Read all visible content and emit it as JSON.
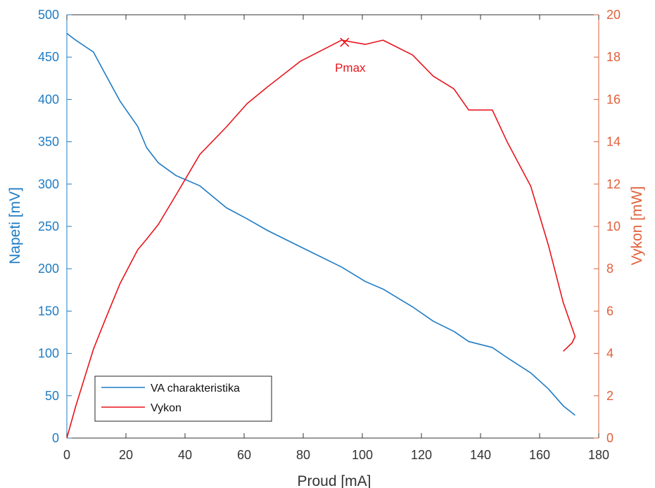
{
  "chart_data": {
    "type": "line",
    "title": "",
    "xlabel": "Proud [mA]",
    "ylabel_left": "Napeti [mV]",
    "ylabel_right": "Vykon [mW]",
    "xlim": [
      0,
      180
    ],
    "ylim_left": [
      0,
      500
    ],
    "ylim_right": [
      0,
      20
    ],
    "xticks": [
      0,
      20,
      40,
      60,
      80,
      100,
      120,
      140,
      160,
      180
    ],
    "yticks_left": [
      0,
      50,
      100,
      150,
      200,
      250,
      300,
      350,
      400,
      450,
      500
    ],
    "yticks_right": [
      0,
      2,
      4,
      6,
      8,
      10,
      12,
      14,
      16,
      18,
      20
    ],
    "grid": false,
    "legend_position": "bottom-left",
    "series": [
      {
        "name": "VA charakteristika",
        "axis": "left",
        "color": "#1f7cc4",
        "x": [
          0,
          3,
          9,
          13,
          18,
          24,
          27,
          31,
          37,
          45,
          54,
          61,
          68,
          79,
          93,
          101,
          107,
          117,
          124,
          131,
          136,
          144,
          149,
          157,
          163,
          168,
          172
        ],
        "y": [
          478,
          470,
          456,
          430,
          398,
          368,
          343,
          325,
          310,
          298,
          272,
          259,
          245,
          226,
          202,
          185,
          176,
          155,
          138,
          126,
          114,
          107,
          95,
          77,
          58,
          38,
          27
        ]
      },
      {
        "name": "Vykon",
        "axis": "right",
        "color": "#e8141c",
        "x": [
          0,
          3,
          9,
          13,
          18,
          24,
          27,
          31,
          37,
          45,
          54,
          61,
          68,
          79,
          93,
          101,
          107,
          117,
          124,
          131,
          136,
          144,
          149,
          157,
          163,
          168,
          172,
          171,
          168
        ],
        "y": [
          0,
          1.5,
          4.2,
          5.6,
          7.3,
          8.9,
          9.4,
          10.1,
          11.5,
          13.4,
          14.7,
          15.8,
          16.6,
          17.8,
          18.8,
          18.6,
          18.8,
          18.1,
          17.1,
          16.5,
          15.5,
          15.5,
          14.0,
          11.9,
          9.1,
          6.4,
          4.8,
          4.5,
          4.1
        ]
      }
    ],
    "annotations": [
      {
        "text": "Pmax",
        "x": 94,
        "y": 18.7,
        "axis": "right",
        "marker": "x",
        "color": "#e8141c"
      }
    ]
  },
  "colors": {
    "left_axis": "#1f7cc4",
    "right_axis": "#e0603a",
    "bottom_axis": "#333333"
  }
}
